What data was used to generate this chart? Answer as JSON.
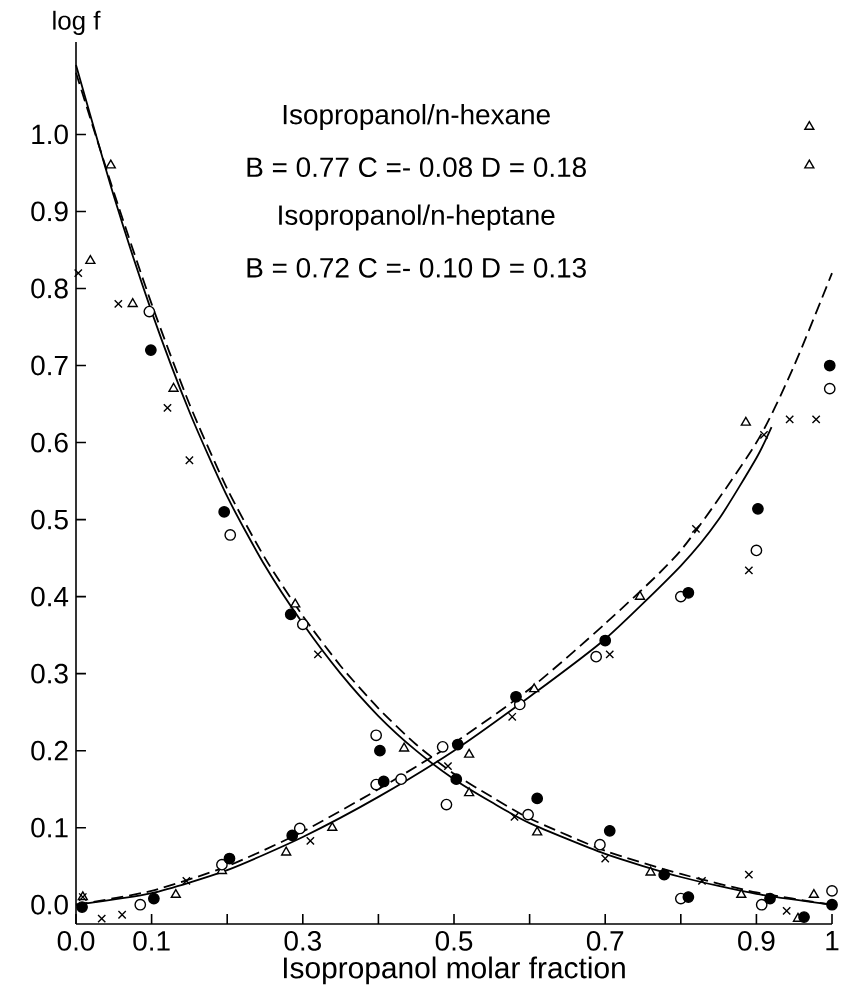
{
  "chart_data": {
    "type": "scatter",
    "xlabel": "Isopropanol molar fraction",
    "ylabel": "log f",
    "annotations": [
      "Isopropanol/n-hexane",
      "B = 0.77    C =- 0.08    D = 0.18",
      "Isopropanol/n-heptane",
      "B = 0.72    C =- 0.10    D = 0.13"
    ],
    "xlim": [
      0,
      1
    ],
    "ylim": [
      -0.025,
      1.12
    ],
    "xticks": [
      {
        "value": 0,
        "label": "0.0"
      },
      0.1,
      {
        "value": 0.2,
        "label": null
      },
      0.3,
      {
        "value": 0.4,
        "label": null
      },
      0.5,
      {
        "value": 0.6,
        "label": null
      },
      0.7,
      {
        "value": 0.8,
        "label": null
      },
      0.9,
      1
    ],
    "yticks": [
      {
        "value": 0,
        "label": "0.0"
      },
      0.1,
      0.2,
      0.3,
      0.4,
      0.5,
      0.6,
      0.7,
      0.8,
      0.9,
      {
        "value": 1,
        "label": "1.0"
      }
    ],
    "series": [
      {
        "type": "line",
        "line_style": "solid",
        "marker": "none",
        "color": "#000000",
        "x": [
          0,
          0.05,
          0.1,
          0.15,
          0.2,
          0.25,
          0.3,
          0.35,
          0.4,
          0.45,
          0.5,
          0.55,
          0.6,
          0.7,
          0.8,
          0.9,
          1.0
        ],
        "values": [
          1.09,
          0.92,
          0.77,
          0.64,
          0.53,
          0.44,
          0.365,
          0.3,
          0.245,
          0.2,
          0.163,
          0.133,
          0.106,
          0.066,
          0.036,
          0.014,
          0.0
        ]
      },
      {
        "type": "line",
        "line_style": "dashed",
        "marker": "none",
        "color": "#000000",
        "x": [
          0,
          0.05,
          0.1,
          0.15,
          0.2,
          0.25,
          0.3,
          0.35,
          0.4,
          0.45,
          0.5,
          0.55,
          0.6,
          0.7,
          0.8,
          0.9,
          1.0
        ],
        "values": [
          1.08,
          0.925,
          0.78,
          0.65,
          0.54,
          0.45,
          0.375,
          0.31,
          0.255,
          0.208,
          0.17,
          0.14,
          0.112,
          0.07,
          0.04,
          0.016,
          0.0
        ]
      },
      {
        "type": "line",
        "line_style": "solid",
        "marker": "none",
        "color": "#000000",
        "x": [
          0,
          0.1,
          0.2,
          0.3,
          0.4,
          0.5,
          0.6,
          0.7,
          0.8,
          0.85,
          0.9,
          0.92
        ],
        "values": [
          0,
          0.015,
          0.045,
          0.088,
          0.14,
          0.2,
          0.27,
          0.345,
          0.44,
          0.5,
          0.58,
          0.62
        ]
      },
      {
        "type": "line",
        "line_style": "dashed",
        "marker": "none",
        "color": "#000000",
        "x": [
          0,
          0.1,
          0.2,
          0.3,
          0.4,
          0.5,
          0.6,
          0.7,
          0.8,
          0.9,
          0.95,
          1.0
        ],
        "values": [
          0,
          0.018,
          0.05,
          0.095,
          0.15,
          0.21,
          0.28,
          0.365,
          0.46,
          0.6,
          0.7,
          0.82
        ]
      },
      {
        "marker": "triangle",
        "color": "#ffffff",
        "x": [
          0.046,
          0.019,
          0.075,
          0.129,
          0.29,
          0.886,
          0.97,
          0.97,
          0.746,
          0.606,
          0.52,
          0.52,
          0.61,
          0.76,
          0.88,
          0.955,
          0.976,
          0.434,
          0.339,
          0.278,
          0.193,
          0.132,
          0.009
        ],
        "values": [
          0.96,
          0.836,
          0.78,
          0.67,
          0.39,
          0.626,
          1.01,
          0.96,
          0.4,
          0.28,
          0.195,
          0.145,
          0.094,
          0.042,
          0.013,
          -0.018,
          0.013,
          0.203,
          0.1,
          0.068,
          0.044,
          0.013,
          0.01
        ]
      },
      {
        "marker": "circle",
        "color": "#ffffff",
        "x": [
          0.097,
          0.204,
          0.3,
          0.997,
          0.9,
          0.8,
          0.688,
          0.587,
          0.485,
          0.49,
          0.598,
          0.693,
          0.8,
          0.907,
          1.0,
          0.397,
          0.397,
          0.43,
          0.296,
          0.193,
          0.085
        ],
        "values": [
          0.77,
          0.48,
          0.364,
          0.67,
          0.46,
          0.4,
          0.322,
          0.26,
          0.205,
          0.13,
          0.117,
          0.078,
          0.008,
          0.0,
          0.018,
          0.22,
          0.156,
          0.163,
          0.099,
          0.052,
          0.0
        ]
      },
      {
        "marker": "circle",
        "color": "#000000",
        "x": [
          0.099,
          0.196,
          0.284,
          0.997,
          0.902,
          0.81,
          0.7,
          0.582,
          0.505,
          0.503,
          0.61,
          0.706,
          0.778,
          0.81,
          0.918,
          0.963,
          1.0,
          0.402,
          0.407,
          0.286,
          0.203,
          0.103,
          0.008
        ],
        "values": [
          0.72,
          0.51,
          0.377,
          0.7,
          0.514,
          0.405,
          0.343,
          0.27,
          0.208,
          0.163,
          0.138,
          0.096,
          0.039,
          0.01,
          0.008,
          -0.016,
          0.0,
          0.2,
          0.16,
          0.09,
          0.06,
          0.008,
          -0.003
        ]
      },
      {
        "marker": "cross",
        "color": "#000000",
        "x": [
          0.003,
          0.056,
          0.121,
          0.15,
          0.32,
          0.944,
          0.979,
          0.91,
          0.89,
          0.82,
          0.706,
          0.577,
          0.492,
          0.58,
          0.7,
          0.828,
          0.89,
          0.94,
          0.31,
          0.146,
          0.061,
          0.034,
          0.009
        ],
        "values": [
          0.82,
          0.78,
          0.645,
          0.577,
          0.325,
          0.63,
          0.63,
          0.61,
          0.434,
          0.488,
          0.325,
          0.244,
          0.18,
          0.114,
          0.06,
          0.031,
          0.039,
          -0.008,
          0.083,
          0.031,
          -0.013,
          -0.018,
          0.01
        ]
      }
    ]
  }
}
